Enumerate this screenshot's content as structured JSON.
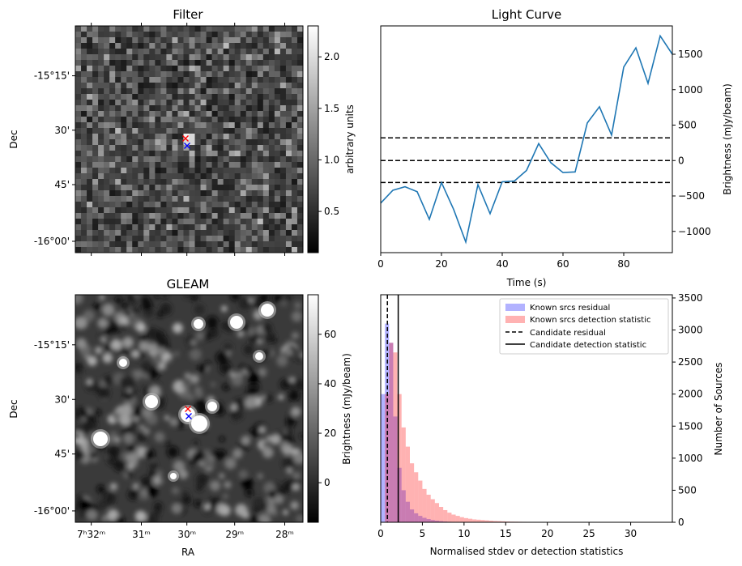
{
  "chart_data": [
    {
      "type": "heatmap",
      "title": "Filter",
      "xlabel": "",
      "ylabel": "Dec",
      "y_ticks": [
        "-15°15'",
        "30'",
        "45'",
        "-16°00'"
      ],
      "colorbar": {
        "label": "arbitrary units",
        "ticks": [
          0.5,
          1.0,
          1.5,
          2.0
        ],
        "tick_labels": [
          "0.5",
          "1.0",
          "1.5",
          "2.0"
        ],
        "range": [
          0.1,
          2.3
        ],
        "colormap": "gray"
      },
      "markers": [
        {
          "symbol": "x",
          "color": "#ff0000",
          "label": ""
        },
        {
          "symbol": "x",
          "color": "#0000ff",
          "label": ""
        }
      ]
    },
    {
      "type": "line",
      "title": "Light Curve",
      "xlabel": "Time (s)",
      "ylabel": "Brightness (mJy/beam)",
      "xlim": [
        0,
        96
      ],
      "ylim": [
        -1300,
        1900
      ],
      "x_ticks": [
        0,
        20,
        40,
        60,
        80
      ],
      "y_ticks": [
        -1000,
        -500,
        0,
        500,
        1000,
        1500
      ],
      "color": "#1f77b4",
      "x": [
        0,
        4,
        8,
        12,
        16,
        20,
        24,
        28,
        32,
        36,
        40,
        44,
        48,
        52,
        56,
        60,
        64,
        68,
        72,
        76,
        80,
        84,
        88,
        92,
        96
      ],
      "y": [
        -600,
        -420,
        -370,
        -440,
        -830,
        -310,
        -690,
        -1150,
        -340,
        -750,
        -300,
        -290,
        -140,
        240,
        -30,
        -170,
        -160,
        530,
        760,
        360,
        1320,
        1590,
        1090,
        1760,
        1500
      ],
      "hlines": [
        320,
        0,
        -310
      ]
    },
    {
      "type": "heatmap",
      "title": "GLEAM",
      "xlabel": "RA",
      "ylabel": "Dec",
      "x_ticks": [
        "7ʰ32ᵐ",
        "31ᵐ",
        "30ᵐ",
        "29ᵐ",
        "28ᵐ"
      ],
      "y_ticks": [
        "-15°15'",
        "30'",
        "45'",
        "-16°00'"
      ],
      "colorbar": {
        "label": "Brightness (mJy/beam)",
        "ticks": [
          0,
          20,
          40,
          60
        ],
        "tick_labels": [
          "0",
          "20",
          "40",
          "60"
        ],
        "range": [
          -16,
          76
        ],
        "colormap": "gray"
      },
      "markers": [
        {
          "symbol": "x",
          "color": "#ff0000",
          "label": ""
        },
        {
          "symbol": "x",
          "color": "#0000ff",
          "label": ""
        }
      ]
    },
    {
      "type": "bar",
      "title": "",
      "xlabel": "Normalised stdev or detection statistics",
      "ylabel": "Number of Sources",
      "xlim": [
        0,
        35
      ],
      "ylim": [
        0,
        3550
      ],
      "x_ticks": [
        0,
        5,
        10,
        15,
        20,
        25,
        30
      ],
      "y_ticks": [
        0,
        500,
        1000,
        1500,
        2000,
        2500,
        3000,
        3500
      ],
      "legend_position": "top-right",
      "bin_edges": [
        0,
        0.5,
        1.0,
        1.5,
        2.0,
        2.5,
        3.0,
        3.5,
        4.0,
        4.5,
        5.0,
        5.5,
        6.0,
        6.5,
        7.0,
        7.5,
        8.0,
        8.5,
        9.0,
        9.5,
        10.0,
        10.5,
        11.0,
        11.5,
        12.0,
        12.5,
        13.0,
        13.5,
        14.0,
        14.5,
        15.0,
        15.5,
        16.0,
        16.5,
        17.0,
        17.5,
        18.0,
        18.5,
        19.0,
        19.5,
        20.0,
        20.5,
        21.0,
        21.5,
        22.0,
        22.5,
        23.0,
        23.5,
        24.0,
        24.5,
        25.0
      ],
      "series": [
        {
          "name": "Known srcs residual",
          "color": "#0000ff",
          "alpha": 0.3,
          "values": [
            2000,
            3100,
            2800,
            1650,
            850,
            500,
            320,
            200,
            140,
            100,
            70,
            50,
            35,
            25,
            18,
            12,
            8,
            6,
            4,
            3,
            2,
            1,
            1,
            0,
            0,
            0,
            0,
            0,
            0,
            0,
            0,
            0,
            0,
            0,
            0,
            0,
            0,
            0,
            0,
            0,
            0,
            0,
            0,
            0,
            0,
            0,
            0,
            0,
            0,
            0
          ]
        },
        {
          "name": "Known srcs detection statistic",
          "color": "#ff0000",
          "alpha": 0.3,
          "values": [
            0,
            2000,
            2800,
            2650,
            2000,
            1480,
            1180,
            920,
            780,
            650,
            520,
            430,
            360,
            300,
            240,
            190,
            150,
            120,
            100,
            80,
            65,
            55,
            45,
            40,
            35,
            30,
            25,
            20,
            18,
            15,
            12,
            10,
            9,
            8,
            7,
            6,
            5,
            5,
            4,
            4,
            3,
            3,
            3,
            2,
            2,
            2,
            2,
            2,
            2,
            2
          ]
        }
      ],
      "vlines": [
        {
          "name": "Candidate residual",
          "x": 0.8,
          "style": "dashed",
          "color": "#000000"
        },
        {
          "name": "Candidate detection statistic",
          "x": 2.1,
          "style": "solid",
          "color": "#000000"
        }
      ]
    }
  ]
}
